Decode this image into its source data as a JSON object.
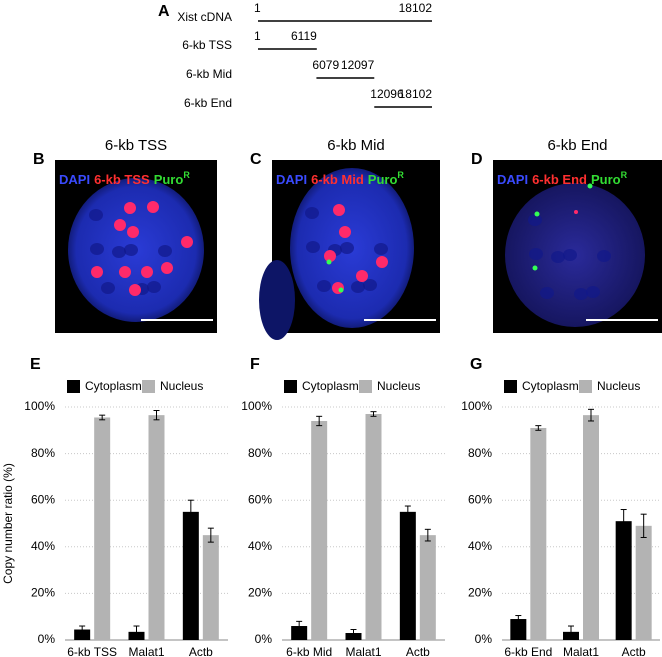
{
  "diagram": {
    "label": "A",
    "constructs": [
      {
        "name": "Xist cDNA",
        "start": 1,
        "end": 18102
      },
      {
        "name": "6-kb TSS",
        "start": 1,
        "end": 6119
      },
      {
        "name": "6-kb Mid",
        "start": 6079,
        "end": 12097
      },
      {
        "name": "6-kb End",
        "start": 12096,
        "end": 18102
      }
    ]
  },
  "images": [
    {
      "label": "B",
      "title": "6-kb TSS",
      "channels": [
        "DAPI",
        "6-kb TSS",
        "Puro"
      ],
      "sup": "R"
    },
    {
      "label": "C",
      "title": "6-kb Mid",
      "channels": [
        "DAPI",
        "6-kb Mid",
        "Puro"
      ],
      "sup": "R"
    },
    {
      "label": "D",
      "title": "6-kb End",
      "channels": [
        "DAPI",
        "6-kb End",
        "Puro"
      ],
      "sup": "R"
    }
  ],
  "chart_data": [
    {
      "type": "bar",
      "label": "E",
      "y_label": "Copy number ratio (%)",
      "categories": [
        "6-kb TSS",
        "Malat1",
        "Actb"
      ],
      "series": [
        {
          "name": "Cytoplasm",
          "color": "#000000",
          "values": [
            4.5,
            3.5,
            55
          ],
          "errors": [
            1.5,
            2.5,
            5
          ]
        },
        {
          "name": "Nucleus",
          "color": "#b3b3b3",
          "values": [
            95.5,
            96.5,
            45
          ],
          "errors": [
            1,
            2,
            3
          ]
        }
      ],
      "ylim": [
        0,
        100
      ],
      "yticks": [
        {
          "value": 0,
          "label": "0%"
        },
        {
          "value": 20,
          "label": "20%"
        },
        {
          "value": 40,
          "label": "40%"
        },
        {
          "value": 60,
          "label": "60%"
        },
        {
          "value": 80,
          "label": "80%"
        },
        {
          "value": 100,
          "label": "100%"
        }
      ],
      "grid": true
    },
    {
      "type": "bar",
      "label": "F",
      "categories": [
        "6-kb Mid",
        "Malat1",
        "Actb"
      ],
      "series": [
        {
          "name": "Cytoplasm",
          "color": "#000000",
          "values": [
            6,
            3,
            55
          ],
          "errors": [
            2,
            1.5,
            2.5
          ]
        },
        {
          "name": "Nucleus",
          "color": "#b3b3b3",
          "values": [
            94,
            97,
            45
          ],
          "errors": [
            2,
            1,
            2.5
          ]
        }
      ],
      "ylim": [
        0,
        100
      ],
      "yticks": [
        {
          "value": 0,
          "label": "0%"
        },
        {
          "value": 20,
          "label": "20%"
        },
        {
          "value": 40,
          "label": "40%"
        },
        {
          "value": 60,
          "label": "60%"
        },
        {
          "value": 80,
          "label": "80%"
        },
        {
          "value": 100,
          "label": "100%"
        }
      ],
      "grid": true
    },
    {
      "type": "bar",
      "label": "G",
      "categories": [
        "6-kb End",
        "Malat1",
        "Actb"
      ],
      "series": [
        {
          "name": "Cytoplasm",
          "color": "#000000",
          "values": [
            9,
            3.5,
            51
          ],
          "errors": [
            1.5,
            2.5,
            5
          ]
        },
        {
          "name": "Nucleus",
          "color": "#b3b3b3",
          "values": [
            91,
            96.5,
            49
          ],
          "errors": [
            1,
            2.5,
            5
          ]
        }
      ],
      "ylim": [
        0,
        100
      ],
      "yticks": [
        {
          "value": 0,
          "label": "0%"
        },
        {
          "value": 20,
          "label": "20%"
        },
        {
          "value": 40,
          "label": "40%"
        },
        {
          "value": 60,
          "label": "60%"
        },
        {
          "value": 80,
          "label": "80%"
        },
        {
          "value": 100,
          "label": "100%"
        }
      ],
      "grid": true
    }
  ]
}
